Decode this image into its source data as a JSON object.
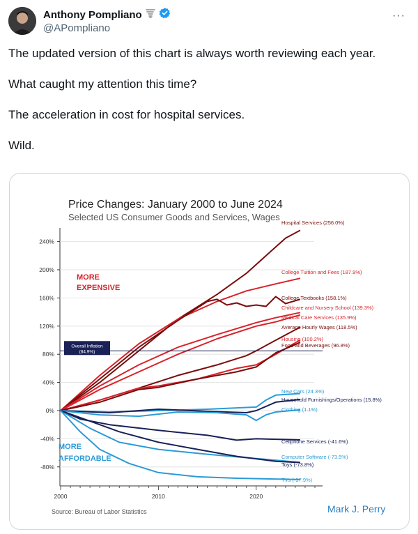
{
  "author": {
    "name": "Anthony Pompliano",
    "handle": "@APompliano",
    "tornado_icon": "tornado-icon",
    "verified_icon": "verified-badge-icon"
  },
  "more_label": "···",
  "tweet": {
    "lines": [
      "The updated version of this chart is always worth reviewing each year.",
      "What caught my attention this time?",
      "The acceleration in cost for hospital services.",
      "Wild."
    ]
  },
  "colors": {
    "red": "#d8232a",
    "dark_red": "#7a0c0c",
    "blue": "#2b9bd6",
    "navy": "#1a2157",
    "inflation_box": "#1a2157"
  },
  "chart_data": {
    "type": "line",
    "title": "Price Changes:  January 2000 to June 2024",
    "subtitle": "Selected US Consumer Goods and Services, Wages",
    "x_tick_labels": [
      "2000",
      "2010",
      "2020"
    ],
    "y_tick_labels": [
      "240%",
      "200%",
      "160%",
      "120%",
      "80%",
      "40%",
      "0%",
      "-40%",
      "-80%"
    ],
    "ylim": [
      -100,
      260
    ],
    "xlim": [
      2000,
      2026
    ],
    "more_expensive_label": [
      "MORE",
      "EXPENSIVE"
    ],
    "more_affordable_label": [
      "MORE",
      "AFFORDABLE"
    ],
    "inflation": {
      "label": [
        "Overall Inflation",
        "(84.9%)"
      ],
      "value": 84.9
    },
    "source": "Source: Bureau of Labor Statistics",
    "credit": "Mark J. Perry",
    "series": [
      {
        "name": "Hospital Services",
        "label": "Hospital Services (256.0%)",
        "final": 256.0,
        "group": "dark_red",
        "points": [
          [
            2000,
            0
          ],
          [
            2004,
            40
          ],
          [
            2008,
            85
          ],
          [
            2012,
            130
          ],
          [
            2016,
            165
          ],
          [
            2019,
            195
          ],
          [
            2021,
            220
          ],
          [
            2023,
            245
          ],
          [
            2024.5,
            256
          ]
        ]
      },
      {
        "name": "College Tuition and Fees",
        "label": "College Tuition and Fees (187.9%)",
        "final": 187.9,
        "group": "red",
        "points": [
          [
            2000,
            0
          ],
          [
            2004,
            50
          ],
          [
            2008,
            95
          ],
          [
            2012,
            130
          ],
          [
            2016,
            155
          ],
          [
            2019,
            170
          ],
          [
            2022,
            180
          ],
          [
            2024.5,
            187.9
          ]
        ]
      },
      {
        "name": "College Textbooks",
        "label": "College Textbooks (158.1%)",
        "final": 158.1,
        "group": "dark_red",
        "points": [
          [
            2000,
            0
          ],
          [
            2004,
            45
          ],
          [
            2008,
            90
          ],
          [
            2012,
            128
          ],
          [
            2015,
            155
          ],
          [
            2016,
            158
          ],
          [
            2017,
            150
          ],
          [
            2018,
            153
          ],
          [
            2019,
            148
          ],
          [
            2020,
            150
          ],
          [
            2021,
            148
          ],
          [
            2022,
            162
          ],
          [
            2023,
            152
          ],
          [
            2024.5,
            158.1
          ]
        ]
      },
      {
        "name": "Childcare and Nursery School",
        "label": "Childcare and Nursery School (139.3%)",
        "final": 139.3,
        "group": "red",
        "points": [
          [
            2000,
            0
          ],
          [
            2004,
            35
          ],
          [
            2008,
            65
          ],
          [
            2012,
            90
          ],
          [
            2016,
            108
          ],
          [
            2020,
            125
          ],
          [
            2022,
            132
          ],
          [
            2024.5,
            139.3
          ]
        ]
      },
      {
        "name": "Medical Care Services",
        "label": "Medical Care Services (135.9%)",
        "final": 135.9,
        "group": "red",
        "points": [
          [
            2000,
            0
          ],
          [
            2004,
            30
          ],
          [
            2008,
            55
          ],
          [
            2012,
            80
          ],
          [
            2016,
            102
          ],
          [
            2020,
            120
          ],
          [
            2022,
            126
          ],
          [
            2024.5,
            135.9
          ]
        ]
      },
      {
        "name": "Average Hourly Wages",
        "label": "Average Hourly Wages (118.5%)",
        "final": 118.5,
        "group": "dark_red",
        "points": [
          [
            2000,
            0
          ],
          [
            2004,
            15
          ],
          [
            2008,
            32
          ],
          [
            2012,
            50
          ],
          [
            2016,
            65
          ],
          [
            2019,
            78
          ],
          [
            2020,
            85
          ],
          [
            2022,
            100
          ],
          [
            2024.5,
            118.5
          ]
        ]
      },
      {
        "name": "Housing",
        "label": "Housing (100.2%)",
        "final": 100.2,
        "group": "red",
        "points": [
          [
            2000,
            0
          ],
          [
            2004,
            15
          ],
          [
            2008,
            32
          ],
          [
            2010,
            35
          ],
          [
            2014,
            45
          ],
          [
            2018,
            60
          ],
          [
            2020,
            65
          ],
          [
            2022,
            80
          ],
          [
            2024.5,
            100.2
          ]
        ]
      },
      {
        "name": "Food and Beverages",
        "label": "Food and Beverages (96.8%)",
        "final": 96.8,
        "group": "dark_red",
        "points": [
          [
            2000,
            0
          ],
          [
            2004,
            12
          ],
          [
            2008,
            30
          ],
          [
            2010,
            33
          ],
          [
            2014,
            45
          ],
          [
            2018,
            55
          ],
          [
            2020,
            62
          ],
          [
            2022,
            82
          ],
          [
            2024.5,
            96.8
          ]
        ]
      },
      {
        "name": "New Cars",
        "label": "New Cars (24.3%)",
        "final": 24.3,
        "group": "blue",
        "points": [
          [
            2000,
            0
          ],
          [
            2005,
            -2
          ],
          [
            2010,
            0
          ],
          [
            2015,
            2
          ],
          [
            2020,
            5
          ],
          [
            2021,
            15
          ],
          [
            2022,
            22
          ],
          [
            2024.5,
            24.3
          ]
        ]
      },
      {
        "name": "Household Furnishings/Operations",
        "label": "Household Furnishings/Operations (15.8%)",
        "final": 15.8,
        "group": "navy",
        "points": [
          [
            2000,
            0
          ],
          [
            2005,
            -3
          ],
          [
            2010,
            2
          ],
          [
            2015,
            -1
          ],
          [
            2019,
            -3
          ],
          [
            2020,
            0
          ],
          [
            2022,
            12
          ],
          [
            2024.5,
            15.8
          ]
        ]
      },
      {
        "name": "Clothing",
        "label": "Clothing (1.1%)",
        "final": 1.1,
        "group": "blue",
        "points": [
          [
            2000,
            0
          ],
          [
            2004,
            -6
          ],
          [
            2008,
            -8
          ],
          [
            2012,
            -2
          ],
          [
            2016,
            -3
          ],
          [
            2019,
            -6
          ],
          [
            2020,
            -14
          ],
          [
            2021,
            -6
          ],
          [
            2022,
            -2
          ],
          [
            2024.5,
            1.1
          ]
        ]
      },
      {
        "name": "Cellphone Services",
        "label": "Cellphone Services (-41.6%)",
        "final": -41.6,
        "group": "navy",
        "points": [
          [
            2000,
            0
          ],
          [
            2002,
            -12
          ],
          [
            2005,
            -20
          ],
          [
            2010,
            -28
          ],
          [
            2015,
            -35
          ],
          [
            2018,
            -42
          ],
          [
            2020,
            -40
          ],
          [
            2024.5,
            -41.6
          ]
        ]
      },
      {
        "name": "Computer Software",
        "label": "Computer Software (-73.5%)",
        "final": -73.5,
        "group": "blue",
        "points": [
          [
            2000,
            0
          ],
          [
            2003,
            -25
          ],
          [
            2006,
            -45
          ],
          [
            2010,
            -55
          ],
          [
            2015,
            -62
          ],
          [
            2020,
            -68
          ],
          [
            2024.5,
            -73.5
          ]
        ]
      },
      {
        "name": "Toys",
        "label": "Toys (-73.8%)",
        "final": -73.8,
        "group": "navy",
        "points": [
          [
            2000,
            0
          ],
          [
            2003,
            -15
          ],
          [
            2006,
            -30
          ],
          [
            2010,
            -45
          ],
          [
            2014,
            -55
          ],
          [
            2018,
            -65
          ],
          [
            2022,
            -72
          ],
          [
            2024.5,
            -73.8
          ]
        ]
      },
      {
        "name": "TVs",
        "label": "TVs (-97.9%)",
        "final": -97.9,
        "group": "blue",
        "points": [
          [
            2000,
            0
          ],
          [
            2002,
            -30
          ],
          [
            2004,
            -55
          ],
          [
            2007,
            -75
          ],
          [
            2010,
            -88
          ],
          [
            2014,
            -94
          ],
          [
            2018,
            -96
          ],
          [
            2024.5,
            -97.9
          ]
        ]
      }
    ]
  }
}
